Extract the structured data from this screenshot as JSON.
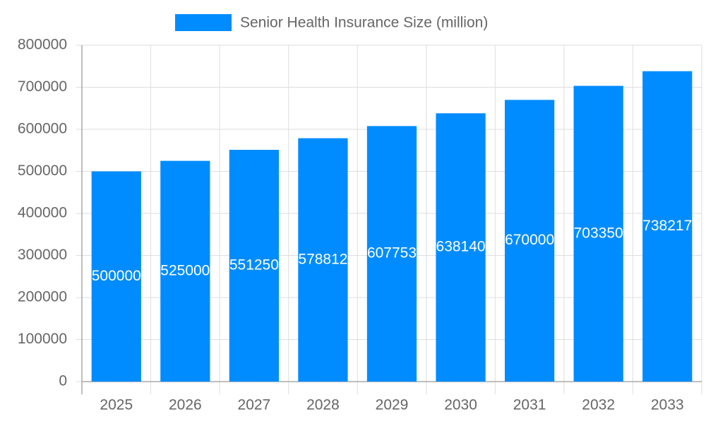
{
  "chart_data": {
    "type": "bar",
    "legend": "Senior Health Insurance Size (million)",
    "categories": [
      "2025",
      "2026",
      "2027",
      "2028",
      "2029",
      "2030",
      "2031",
      "2032",
      "2033"
    ],
    "values": [
      500000,
      525000,
      551250,
      578812,
      607753,
      638140,
      670000,
      703350,
      738217
    ],
    "color": "#008cff",
    "ylim": [
      0,
      800000
    ],
    "yticks": [
      0,
      100000,
      200000,
      300000,
      400000,
      500000,
      600000,
      700000,
      800000
    ],
    "grid": true,
    "data_labels": true
  }
}
